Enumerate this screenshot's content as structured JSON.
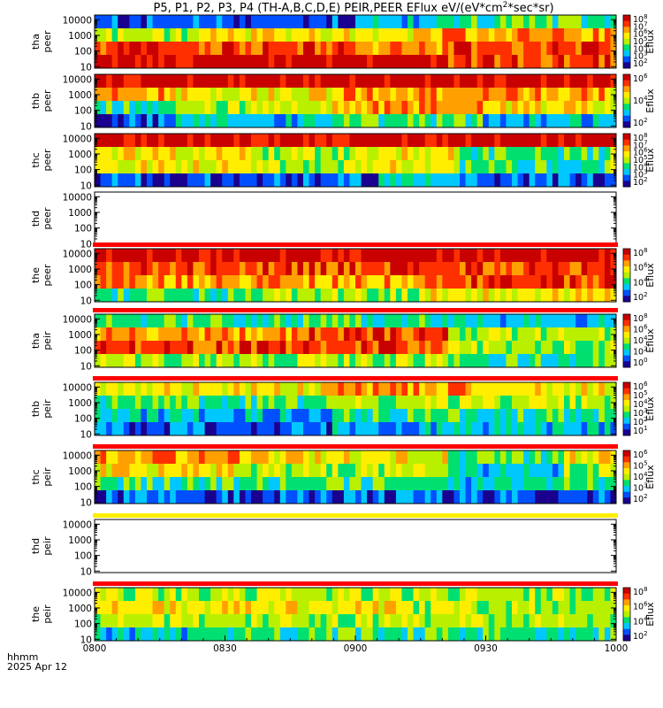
{
  "chart_data": {
    "type": "heatmap",
    "title": "P5, P1, P2, P3, P4 (TH-A,B,C,D,E) PEIR,PEER EFlux eV/(eV*cm^2*sec*sr)",
    "title_parts": {
      "prefix": "P5, P1, P2, P3, P4 (TH-A,B,C,D,E) PEIR,PEER EFlux eV/(eV*cm",
      "sup1": "2",
      "suffix": "*sec*sr)"
    },
    "x": {
      "ticks": [
        "0800",
        "0830",
        "0900",
        "0930",
        "1000"
      ],
      "label_line1": "hhmm",
      "label_line2": "2025 Apr 12"
    },
    "y_scale": "log",
    "ylim": [
      8,
      20000
    ],
    "y_ticks": [
      "10000",
      "1000",
      "100",
      "10"
    ],
    "colormap": [
      "#1a008f",
      "#0050ff",
      "#00c8ff",
      "#00e070",
      "#b8f000",
      "#ffee00",
      "#ffa000",
      "#ff3000",
      "#c80000"
    ],
    "colorbar_label": "Eflux",
    "panels": [
      {
        "probe": "tha",
        "species": "peer",
        "has_data": true,
        "band": false,
        "colorbar": [
          "10^8",
          "10^7",
          "10^6",
          "10^5",
          "10^4",
          "10^3",
          "10^2"
        ],
        "segments": [
          {
            "t": 0,
            "lv": [
              1,
              4,
              7,
              8
            ]
          },
          {
            "t": 0.2,
            "lv": [
              1,
              5,
              7,
              8
            ]
          },
          {
            "t": 0.5,
            "lv": [
              2,
              5,
              6,
              8
            ]
          },
          {
            "t": 0.67,
            "lv": [
              3,
              6,
              7,
              7
            ]
          },
          {
            "t": 1,
            "lv": [
              3,
              6,
              7,
              7
            ]
          }
        ]
      },
      {
        "probe": "thb",
        "species": "peer",
        "has_data": true,
        "band": false,
        "colorbar": [
          "10^6",
          "10^4",
          "10^2"
        ],
        "segments": [
          {
            "t": 0,
            "lv": [
              8,
              6,
              3,
              1
            ]
          },
          {
            "t": 0.15,
            "lv": [
              8,
              5,
              4,
              2
            ]
          },
          {
            "t": 0.45,
            "lv": [
              8,
              6,
              6,
              3
            ]
          },
          {
            "t": 0.75,
            "lv": [
              8,
              6,
              5,
              2
            ]
          },
          {
            "t": 1,
            "lv": [
              8,
              5,
              4,
              2
            ]
          }
        ]
      },
      {
        "probe": "thc",
        "species": "peer",
        "has_data": true,
        "band": false,
        "colorbar": [
          "10^8",
          "10^7",
          "10^6",
          "10^5",
          "10^4",
          "10^3",
          "10^2"
        ],
        "segments": [
          {
            "t": 0,
            "lv": [
              8,
              5,
              5,
              1
            ]
          },
          {
            "t": 0.3,
            "lv": [
              8,
              4,
              4,
              1
            ]
          },
          {
            "t": 0.55,
            "lv": [
              8,
              5,
              5,
              2
            ]
          },
          {
            "t": 0.7,
            "lv": [
              8,
              3,
              3,
              1
            ]
          },
          {
            "t": 1,
            "lv": [
              8,
              4,
              4,
              1
            ]
          }
        ]
      },
      {
        "probe": "thd",
        "species": "peer",
        "has_data": false,
        "band": false,
        "colorbar": [],
        "segments": []
      },
      {
        "probe": "the",
        "species": "peer",
        "has_data": true,
        "band": true,
        "colorbar": [
          "10^8",
          "10^6",
          "10^4",
          "10^2"
        ],
        "segments": [
          {
            "t": 0,
            "lv": [
              8,
              7,
              6,
              3
            ]
          },
          {
            "t": 0.3,
            "lv": [
              8,
              7,
              6,
              4
            ]
          },
          {
            "t": 0.65,
            "lv": [
              8,
              7,
              7,
              5
            ]
          },
          {
            "t": 1,
            "lv": [
              8,
              7,
              7,
              5
            ]
          }
        ]
      },
      {
        "probe": "tha",
        "species": "peir",
        "has_data": true,
        "band": true,
        "colorbar": [
          "10^8",
          "10^6",
          "10^4",
          "10^2",
          "10^0"
        ],
        "segments": [
          {
            "t": 0,
            "lv": [
              3,
              6,
              7,
              4
            ]
          },
          {
            "t": 0.4,
            "lv": [
              3,
              7,
              7,
              4
            ]
          },
          {
            "t": 0.68,
            "lv": [
              2,
              4,
              4,
              3
            ]
          },
          {
            "t": 1,
            "lv": [
              2,
              4,
              4,
              3
            ]
          }
        ]
      },
      {
        "probe": "thb",
        "species": "peir",
        "has_data": true,
        "band": true,
        "colorbar": [
          "10^6",
          "10^5",
          "10^4",
          "10^3",
          "10^2",
          "10^1"
        ],
        "segments": [
          {
            "t": 0,
            "lv": [
              5,
              3,
              2,
              1
            ]
          },
          {
            "t": 0.45,
            "lv": [
              6,
              4,
              3,
              2
            ]
          },
          {
            "t": 0.72,
            "lv": [
              5,
              4,
              3,
              2
            ]
          },
          {
            "t": 1,
            "lv": [
              5,
              4,
              3,
              2
            ]
          }
        ]
      },
      {
        "probe": "thc",
        "species": "peir",
        "has_data": true,
        "band": true,
        "colorbar": [
          "10^6",
          "10^5",
          "10^4",
          "10^3",
          "10^2"
        ],
        "segments": [
          {
            "t": 0,
            "lv": [
              6,
              5,
              3,
              1
            ]
          },
          {
            "t": 0.3,
            "lv": [
              5,
              4,
              3,
              1
            ]
          },
          {
            "t": 0.68,
            "lv": [
              3,
              2,
              2,
              1
            ]
          },
          {
            "t": 0.9,
            "lv": [
              5,
              4,
              3,
              1
            ]
          },
          {
            "t": 1,
            "lv": [
              5,
              4,
              3,
              1
            ]
          }
        ]
      },
      {
        "probe": "thd",
        "species": "peir",
        "has_data": false,
        "band": true,
        "colorbar": [],
        "segments": []
      },
      {
        "probe": "the",
        "species": "peir",
        "has_data": true,
        "band": true,
        "colorbar": [
          "10^8",
          "10^6",
          "10^4",
          "10^2"
        ],
        "segments": [
          {
            "t": 0,
            "lv": [
              4,
              5,
              4,
              2
            ]
          },
          {
            "t": 0.2,
            "lv": [
              4,
              5,
              4,
              3
            ]
          },
          {
            "t": 0.6,
            "lv": [
              4,
              4,
              4,
              3
            ]
          },
          {
            "t": 1,
            "lv": [
              4,
              4,
              3,
              3
            ]
          }
        ]
      }
    ]
  }
}
